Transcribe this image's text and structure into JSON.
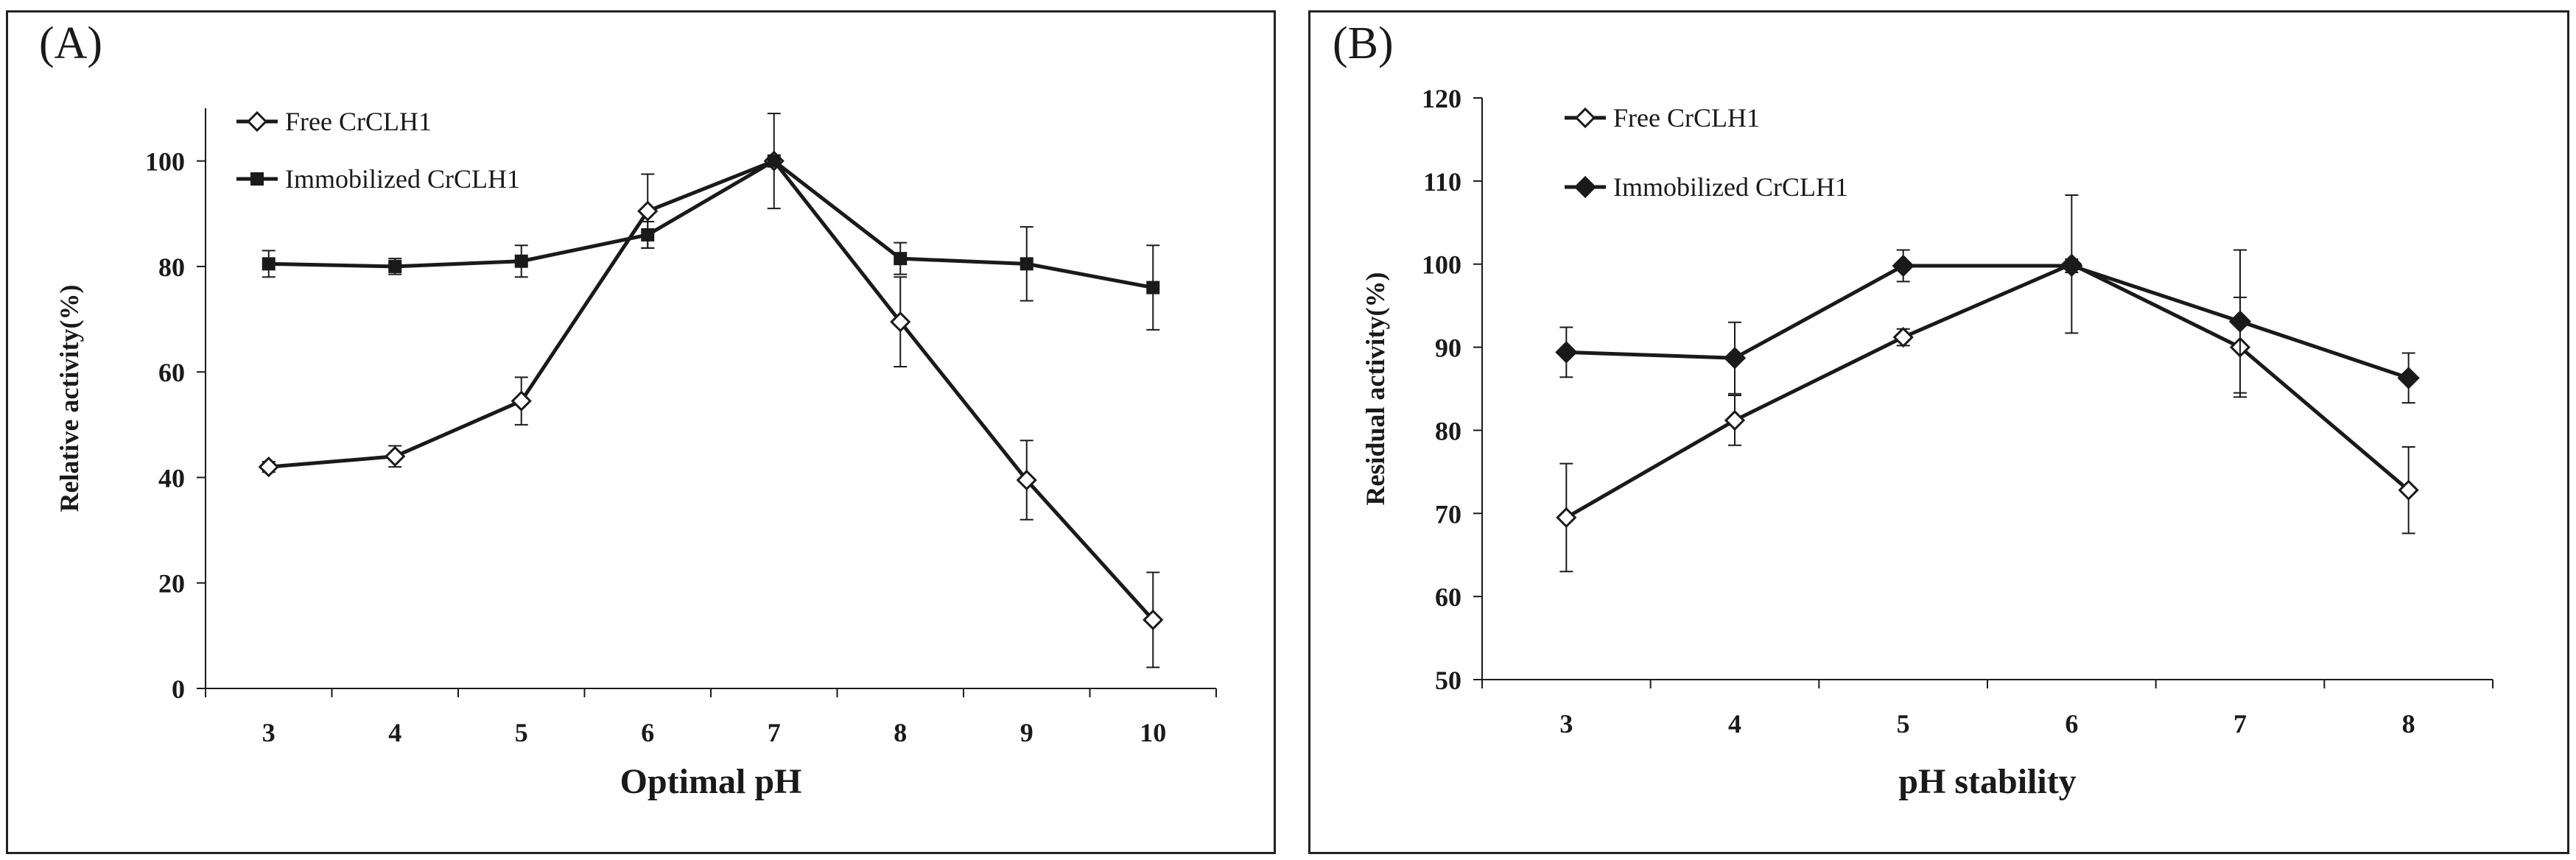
{
  "figure": {
    "background": "#ffffff",
    "ink": "#1a1a1a"
  },
  "chart_data": [
    {
      "panel_label": "(A)",
      "type": "line",
      "title": "",
      "xlabel": "Optimal pH",
      "ylabel": "Relative activity(%)",
      "categories": [
        "3",
        "4",
        "5",
        "6",
        "7",
        "8",
        "9",
        "10"
      ],
      "ylim": [
        0,
        110
      ],
      "yticks": [
        0,
        20,
        40,
        60,
        80,
        100
      ],
      "grid": false,
      "legend_position": "top-left",
      "series": [
        {
          "name": "Free CrCLH1",
          "marker": "open-diamond",
          "values": [
            42,
            44,
            54.5,
            90.5,
            100,
            69.5,
            39.5,
            13
          ],
          "errors": [
            1,
            2,
            4.5,
            7,
            9,
            8.5,
            7.5,
            9
          ]
        },
        {
          "name": "Immobilized CrCLH1",
          "marker": "filled-square",
          "values": [
            80.5,
            80,
            81,
            86,
            100,
            81.5,
            80.5,
            76
          ],
          "errors": [
            2.5,
            1.5,
            3,
            2.5,
            0,
            3,
            7,
            8
          ]
        }
      ]
    },
    {
      "panel_label": "(B)",
      "type": "line",
      "title": "",
      "xlabel": "pH stability",
      "ylabel": "Residual activity(%)",
      "categories": [
        "3",
        "4",
        "5",
        "6",
        "7",
        "8"
      ],
      "ylim": [
        50,
        120
      ],
      "yticks": [
        50,
        60,
        70,
        80,
        90,
        100,
        110,
        120
      ],
      "grid": false,
      "legend_position": "top-left",
      "series": [
        {
          "name": "Free CrCLH1",
          "marker": "open-diamond",
          "values": [
            69.5,
            81.2,
            91.2,
            100,
            90,
            72.8
          ],
          "errors": [
            6.5,
            3,
            1,
            8.3,
            6,
            5.2
          ]
        },
        {
          "name": "Immobilized CrCLH1",
          "marker": "filled-diamond",
          "values": [
            89.4,
            88.7,
            99.8,
            99.8,
            93.1,
            86.3
          ],
          "errors": [
            3,
            4.3,
            1.9,
            0.8,
            8.6,
            3
          ]
        }
      ]
    }
  ]
}
